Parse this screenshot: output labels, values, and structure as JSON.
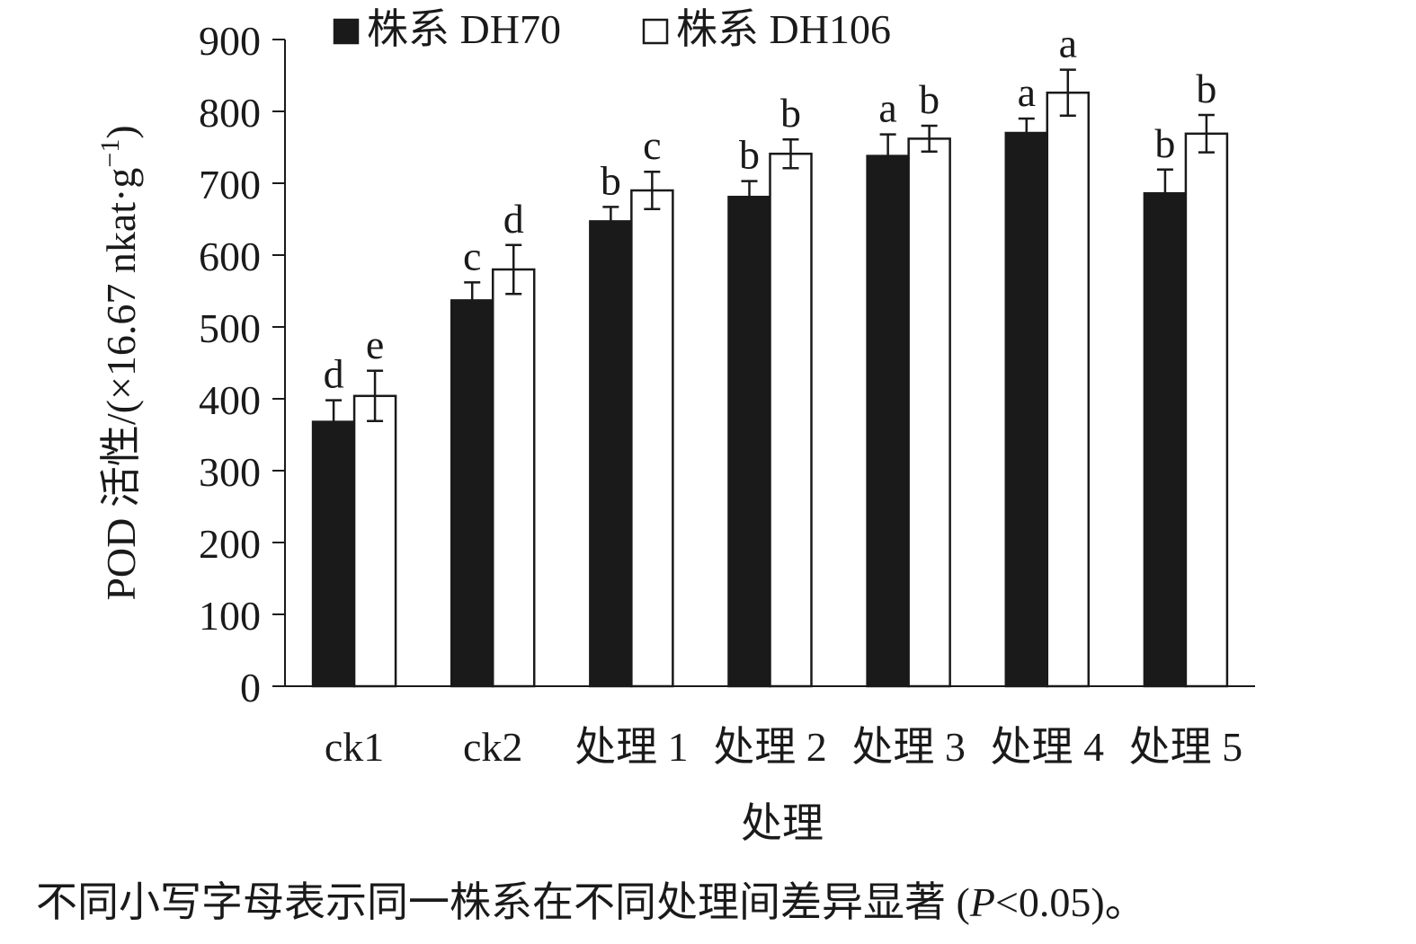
{
  "chart_data": {
    "type": "bar",
    "ylabel": "POD 活性/(×16.67 nkat·g⁻¹)",
    "ylabel_parts": {
      "main": "POD 活性/(×16.67 nkat·g",
      "superscript": "−1",
      "tail": ")"
    },
    "xlabel": "处理",
    "note": "不同小写字母表示同一株系在不同处理间差异显著 (P<0.05)。",
    "note_parts": {
      "before": "不同小写字母表示同一株系在不同处理间差异显著 (",
      "italic": "P",
      "after": "<0.05)。"
    },
    "ylim": [
      0,
      900
    ],
    "yticks": [
      "0",
      "100",
      "200",
      "300",
      "400",
      "500",
      "600",
      "700",
      "800",
      "900"
    ],
    "categories": [
      "ck1",
      "ck2",
      "处理 1",
      "处理 2",
      "处理 3",
      "处理 4",
      "处理 5"
    ],
    "legend_position": "top",
    "series": [
      {
        "name": "株系 DH70",
        "color": "#1a1a1a",
        "values": [
          368,
          537,
          647,
          681,
          738,
          770,
          686
        ],
        "errors": [
          30,
          25,
          20,
          22,
          30,
          20,
          33
        ],
        "letters": [
          "d",
          "c",
          "b",
          "b",
          "a",
          "a",
          "b"
        ]
      },
      {
        "name": "株系 DH106",
        "color": "#ffffff",
        "values": [
          404,
          580,
          690,
          741,
          762,
          826,
          769
        ],
        "errors": [
          35,
          34,
          26,
          20,
          18,
          32,
          26
        ],
        "letters": [
          "e",
          "d",
          "c",
          "b",
          "b",
          "a",
          "b"
        ]
      }
    ]
  }
}
